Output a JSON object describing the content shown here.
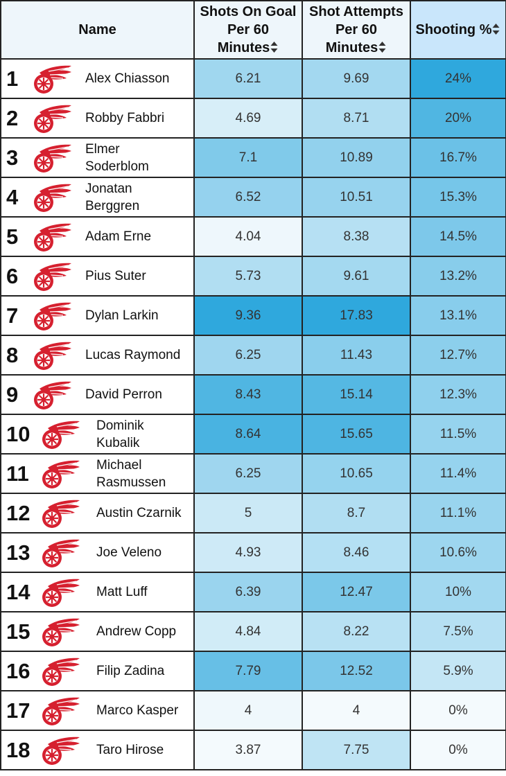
{
  "headers": {
    "name": "Name",
    "sog": [
      "Shots On Goal",
      "Per 60",
      "Minutes"
    ],
    "attempts": [
      "Shot Attempts",
      "Per 60",
      "Minutes"
    ],
    "shooting": "Shooting %"
  },
  "icons": {
    "sort": "sort-arrows-icon",
    "logo": "red-wings-logo-icon"
  },
  "colors": {
    "logo_red": "#d6202f",
    "header_bg": "#eef6fb",
    "sorted_header_bg": "#c9e6fb",
    "scale_low": "#f4fafd",
    "scale_high": "#2fa8dd"
  },
  "rows": [
    {
      "rank": "1",
      "name": [
        "Alex Chiasson"
      ],
      "sog": "6.21",
      "attempts": "9.69",
      "pct": "24%"
    },
    {
      "rank": "2",
      "name": [
        "Robby Fabbri"
      ],
      "sog": "4.69",
      "attempts": "8.71",
      "pct": "20%"
    },
    {
      "rank": "3",
      "name": [
        "Elmer",
        "Soderblom"
      ],
      "sog": "7.1",
      "attempts": "10.89",
      "pct": "16.7%"
    },
    {
      "rank": "4",
      "name": [
        "Jonatan",
        "Berggren"
      ],
      "sog": "6.52",
      "attempts": "10.51",
      "pct": "15.3%"
    },
    {
      "rank": "5",
      "name": [
        "Adam Erne"
      ],
      "sog": "4.04",
      "attempts": "8.38",
      "pct": "14.5%"
    },
    {
      "rank": "6",
      "name": [
        "Pius Suter"
      ],
      "sog": "5.73",
      "attempts": "9.61",
      "pct": "13.2%"
    },
    {
      "rank": "7",
      "name": [
        "Dylan Larkin"
      ],
      "sog": "9.36",
      "attempts": "17.83",
      "pct": "13.1%"
    },
    {
      "rank": "8",
      "name": [
        "Lucas Raymond"
      ],
      "sog": "6.25",
      "attempts": "11.43",
      "pct": "12.7%"
    },
    {
      "rank": "9",
      "name": [
        "David Perron"
      ],
      "sog": "8.43",
      "attempts": "15.14",
      "pct": "12.3%"
    },
    {
      "rank": "10",
      "name": [
        "Dominik",
        "Kubalik"
      ],
      "sog": "8.64",
      "attempts": "15.65",
      "pct": "11.5%"
    },
    {
      "rank": "11",
      "name": [
        "Michael",
        "Rasmussen"
      ],
      "sog": "6.25",
      "attempts": "10.65",
      "pct": "11.4%"
    },
    {
      "rank": "12",
      "name": [
        "Austin Czarnik"
      ],
      "sog": "5",
      "attempts": "8.7",
      "pct": "11.1%"
    },
    {
      "rank": "13",
      "name": [
        "Joe Veleno"
      ],
      "sog": "4.93",
      "attempts": "8.46",
      "pct": "10.6%"
    },
    {
      "rank": "14",
      "name": [
        "Matt Luff"
      ],
      "sog": "6.39",
      "attempts": "12.47",
      "pct": "10%"
    },
    {
      "rank": "15",
      "name": [
        "Andrew Copp"
      ],
      "sog": "4.84",
      "attempts": "8.22",
      "pct": "7.5%"
    },
    {
      "rank": "16",
      "name": [
        "Filip Zadina"
      ],
      "sog": "7.79",
      "attempts": "12.52",
      "pct": "5.9%"
    },
    {
      "rank": "17",
      "name": [
        "Marco Kasper"
      ],
      "sog": "4",
      "attempts": "4",
      "pct": "0%"
    },
    {
      "rank": "18",
      "name": [
        "Taro Hirose"
      ],
      "sog": "3.87",
      "attempts": "7.75",
      "pct": "0%"
    }
  ]
}
